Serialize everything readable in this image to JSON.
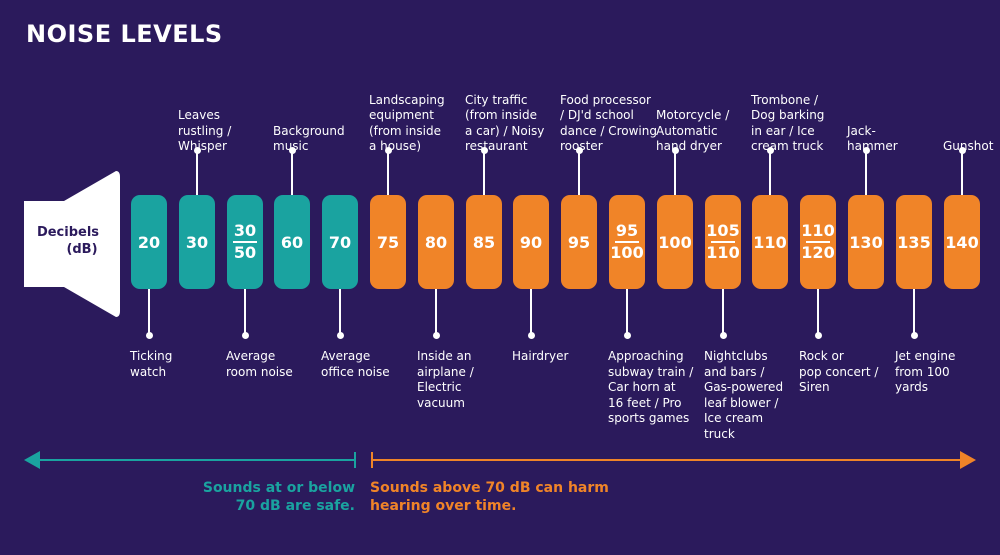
{
  "title": "NOISE LEVELS",
  "speaker": {
    "label_line1": "Decibels",
    "label_line2": "(dB)"
  },
  "colors": {
    "background": "#2b1a5c",
    "safe": "#1aa3a0",
    "harm": "#f08428",
    "text": "#ffffff"
  },
  "levels": [
    {
      "value": "20",
      "zone": "safe",
      "side": "bottom",
      "label": [
        "Ticking",
        "watch"
      ]
    },
    {
      "value": "30",
      "zone": "safe",
      "side": "top",
      "label": [
        "Leaves",
        "rustling /",
        "Whisper"
      ]
    },
    {
      "value": "30/50",
      "zone": "safe",
      "side": "bottom",
      "label": [
        "Average",
        "room noise"
      ]
    },
    {
      "value": "60",
      "zone": "safe",
      "side": "top",
      "label": [
        "Background",
        "music"
      ]
    },
    {
      "value": "70",
      "zone": "safe",
      "side": "bottom",
      "label": [
        "Average",
        "office noise"
      ]
    },
    {
      "value": "75",
      "zone": "harm",
      "side": "top",
      "label": [
        "Landscaping",
        "equipment",
        "(from inside",
        "a house)"
      ]
    },
    {
      "value": "80",
      "zone": "harm",
      "side": "bottom",
      "label": [
        "Inside an",
        "airplane /",
        "Electric",
        "vacuum"
      ]
    },
    {
      "value": "85",
      "zone": "harm",
      "side": "top",
      "label": [
        "City traffic",
        "(from inside",
        "a car) / Noisy",
        "restaurant"
      ]
    },
    {
      "value": "90",
      "zone": "harm",
      "side": "bottom",
      "label": [
        "Hairdryer"
      ]
    },
    {
      "value": "95",
      "zone": "harm",
      "side": "top",
      "label": [
        "Food processor",
        "/ DJ'd school",
        "dance / Crowing",
        "rooster"
      ]
    },
    {
      "value": "95/100",
      "zone": "harm",
      "side": "bottom",
      "label": [
        "Approaching",
        "subway train /",
        "Car horn at",
        "16 feet / Pro",
        "sports games"
      ]
    },
    {
      "value": "100",
      "zone": "harm",
      "side": "top",
      "label": [
        "Motorcycle /",
        "Automatic",
        "hand dryer"
      ]
    },
    {
      "value": "105/110",
      "zone": "harm",
      "side": "bottom",
      "label": [
        "Nightclubs",
        "and bars /",
        "Gas-powered",
        "leaf blower /",
        "Ice cream",
        "truck"
      ]
    },
    {
      "value": "110",
      "zone": "harm",
      "side": "top",
      "label": [
        "Trombone /",
        "Dog barking",
        "in ear / Ice",
        "cream truck"
      ]
    },
    {
      "value": "110/120",
      "zone": "harm",
      "side": "bottom",
      "label": [
        "Rock or",
        "pop concert /",
        "Siren"
      ]
    },
    {
      "value": "130",
      "zone": "harm",
      "side": "top",
      "label": [
        "Jack-",
        "hammer"
      ]
    },
    {
      "value": "135",
      "zone": "harm",
      "side": "bottom",
      "label": [
        "Jet engine",
        "from 100",
        "yards"
      ]
    },
    {
      "value": "140",
      "zone": "harm",
      "side": "top",
      "label": [
        "Gunshot"
      ]
    }
  ],
  "safe_note": [
    "Sounds at or below",
    "70 dB are safe."
  ],
  "harm_note": [
    "Sounds above 70 dB can harm",
    "hearing over time."
  ]
}
